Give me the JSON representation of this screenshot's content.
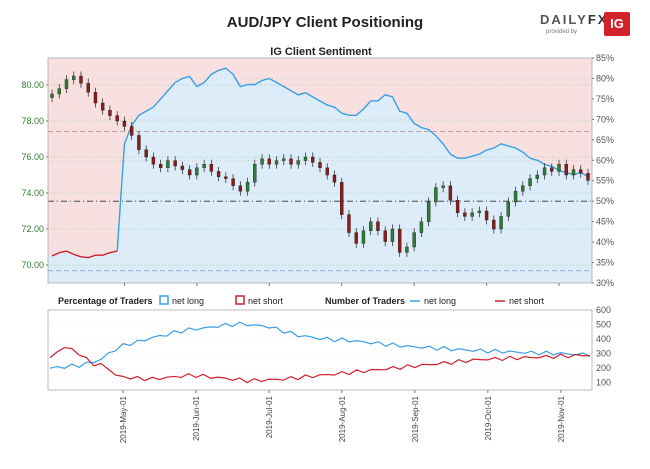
{
  "title": "AUD/JPY Client Positioning",
  "brand": {
    "name_a": "DAILY",
    "name_b": "FX",
    "byline": "provided by",
    "mark": "IG"
  },
  "top_panel": {
    "title": "IG Client Sentiment"
  },
  "legend": {
    "pct_label": "Percentage of Traders",
    "num_label": "Number of Traders",
    "net_long": "net long",
    "net_short": "net short"
  },
  "colors": {
    "long": "#3a9ee4",
    "short": "#d0202e",
    "up": "#2e7d32",
    "down": "#8b1a1a",
    "long_fill": "#dcedf9",
    "short_fill": "#f9e0e0"
  },
  "chart_data": [
    {
      "type": "candlestick",
      "title": "IG Client Sentiment",
      "series": [
        {
          "name": "AUD/JPY"
        }
      ],
      "x": [
        "2019-04-02",
        "2019-04-05",
        "2019-04-08",
        "2019-04-11",
        "2019-04-14",
        "2019-04-17",
        "2019-04-20",
        "2019-04-23",
        "2019-04-26",
        "2019-04-29",
        "2019-05-02",
        "2019-05-05",
        "2019-05-08",
        "2019-05-11",
        "2019-05-14",
        "2019-05-17",
        "2019-05-20",
        "2019-05-23",
        "2019-05-26",
        "2019-05-29",
        "2019-06-01",
        "2019-06-04",
        "2019-06-07",
        "2019-06-10",
        "2019-06-13",
        "2019-06-16",
        "2019-06-19",
        "2019-06-22",
        "2019-06-25",
        "2019-06-28",
        "2019-07-01",
        "2019-07-04",
        "2019-07-07",
        "2019-07-10",
        "2019-07-13",
        "2019-07-16",
        "2019-07-19",
        "2019-07-22",
        "2019-07-25",
        "2019-07-28",
        "2019-07-31",
        "2019-08-03",
        "2019-08-06",
        "2019-08-09",
        "2019-08-12",
        "2019-08-15",
        "2019-08-18",
        "2019-08-21",
        "2019-08-24",
        "2019-08-27",
        "2019-08-30",
        "2019-09-02",
        "2019-09-05",
        "2019-09-08",
        "2019-09-11",
        "2019-09-14",
        "2019-09-17",
        "2019-09-20",
        "2019-09-23",
        "2019-09-26",
        "2019-09-29",
        "2019-10-02",
        "2019-10-05",
        "2019-10-08",
        "2019-10-11",
        "2019-10-14",
        "2019-10-17",
        "2019-10-20",
        "2019-10-23",
        "2019-10-26",
        "2019-10-29",
        "2019-11-01",
        "2019-11-04",
        "2019-11-07",
        "2019-11-10"
      ],
      "close": [
        79.5,
        79.8,
        80.3,
        80.5,
        80.1,
        79.6,
        79.0,
        78.6,
        78.3,
        78.0,
        77.7,
        77.2,
        76.4,
        76.0,
        75.6,
        75.4,
        75.8,
        75.5,
        75.3,
        75.0,
        75.4,
        75.6,
        75.2,
        74.9,
        74.8,
        74.4,
        74.1,
        74.6,
        75.6,
        75.9,
        75.6,
        75.8,
        75.9,
        75.6,
        75.8,
        76.0,
        75.7,
        75.4,
        75.0,
        74.6,
        72.8,
        71.8,
        71.2,
        71.9,
        72.4,
        71.9,
        71.3,
        72.0,
        70.7,
        71.0,
        71.8,
        72.4,
        73.5,
        74.3,
        74.4,
        73.6,
        72.9,
        72.7,
        72.9,
        73.0,
        72.5,
        72.0,
        72.7,
        73.5,
        74.1,
        74.4,
        74.8,
        75.0,
        75.4,
        75.2,
        75.6,
        75.0,
        75.3,
        75.1,
        74.7
      ],
      "ylim": [
        69,
        81.5
      ],
      "y_ticks": [
        "80.00",
        "78.00",
        "76.00",
        "74.00",
        "72.00",
        "70.00"
      ],
      "y2_ticks": [
        "85%",
        "80%",
        "75%",
        "70%",
        "65%",
        "60%",
        "55%",
        "50%",
        "45%",
        "40%",
        "35%",
        "30%"
      ]
    },
    {
      "type": "area",
      "name": "net long %",
      "values": [
        36.6,
        37.4,
        37.8,
        37.0,
        36.4,
        36.2,
        36.8,
        36.8,
        37.4,
        37.8,
        64.0,
        68.5,
        71.0,
        72.0,
        73.0,
        75.0,
        77.0,
        79.0,
        80.0,
        80.5,
        78.0,
        79.0,
        81.0,
        82.0,
        82.5,
        81.0,
        78.0,
        78.5,
        78.5,
        79.5,
        80.0,
        79.0,
        78.0,
        77.0,
        76.0,
        76.5,
        75.5,
        74.5,
        73.5,
        73.0,
        71.5,
        71.0,
        71.0,
        72.5,
        74.5,
        74.5,
        76.0,
        75.5,
        72.0,
        71.5,
        69.0,
        68.0,
        67.5,
        66.0,
        64.0,
        61.5,
        60.5,
        60.5,
        61.0,
        61.5,
        62.5,
        63.0,
        64.0,
        63.5,
        63.0,
        62.0,
        60.5,
        60.0,
        59.0,
        58.5,
        57.5,
        57.0,
        56.5,
        57.0,
        56.0
      ],
      "ylim": [
        30,
        85
      ]
    },
    {
      "type": "line",
      "legend": "Number of Traders",
      "series": [
        {
          "name": "net long",
          "values": [
            200,
            205,
            210,
            215,
            220,
            230,
            245,
            260,
            300,
            330,
            355,
            370,
            380,
            395,
            410,
            420,
            430,
            445,
            455,
            465,
            470,
            475,
            480,
            490,
            495,
            500,
            505,
            500,
            495,
            490,
            485,
            470,
            455,
            440,
            425,
            420,
            410,
            405,
            400,
            395,
            395,
            390,
            385,
            380,
            375,
            370,
            365,
            360,
            355,
            350,
            345,
            345,
            340,
            338,
            335,
            330,
            328,
            325,
            322,
            320,
            318,
            316,
            315,
            312,
            310,
            308,
            306,
            305,
            303,
            302,
            300,
            298,
            296,
            295,
            293
          ]
        },
        {
          "name": "net short",
          "values": [
            260,
            320,
            340,
            330,
            300,
            260,
            230,
            220,
            200,
            150,
            140,
            135,
            130,
            128,
            125,
            130,
            135,
            140,
            145,
            150,
            150,
            145,
            140,
            135,
            130,
            125,
            120,
            115,
            115,
            118,
            120,
            122,
            125,
            130,
            135,
            140,
            145,
            150,
            155,
            160,
            165,
            170,
            175,
            180,
            185,
            190,
            195,
            200,
            205,
            210,
            215,
            220,
            225,
            230,
            235,
            240,
            245,
            250,
            255,
            260,
            262,
            264,
            266,
            268,
            270,
            272,
            274,
            276,
            278,
            280,
            282,
            284,
            286,
            288,
            290
          ]
        }
      ],
      "ylim": [
        50,
        600
      ],
      "y_ticks": [
        "600",
        "500",
        "400",
        "300",
        "200",
        "100"
      ],
      "xlabels": [
        "2019-May-01",
        "2019-Jun-01",
        "2019-Jul-01",
        "2019-Aug-01",
        "2019-Sep-01",
        "2019-Oct-01",
        "2019-Nov-01"
      ]
    }
  ]
}
